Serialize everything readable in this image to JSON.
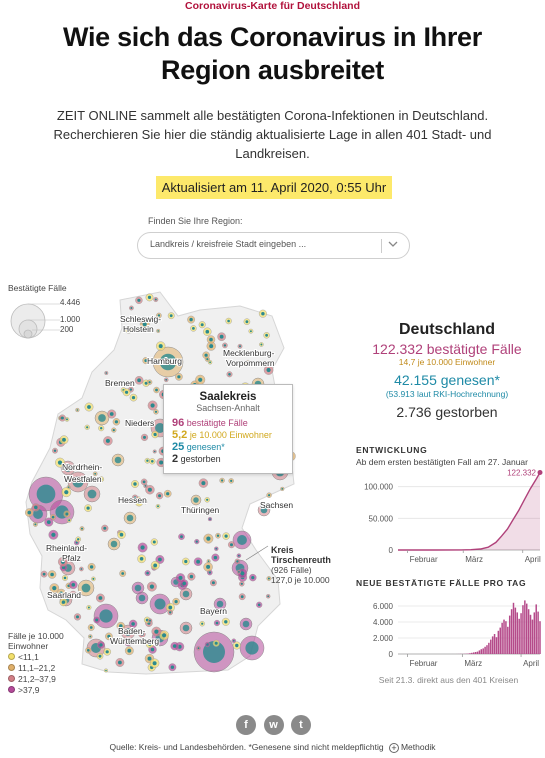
{
  "kicker": "Coronavirus-Karte für Deutschland",
  "headline_line1": "Wie sich das Coronavirus in Ihrer",
  "headline_line2": "Region ausbreitet",
  "intro_line1": "ZEIT ONLINE sammelt alle bestätigten Corona-Infektionen in Deutschland.",
  "intro_line2": "Recherchieren Sie hier die ständig aktualisierte Lage in allen 401 Stadt- und",
  "intro_line3": "Landkreisen.",
  "updated": "Aktualisiert am 11. April 2020, 0:55 Uhr",
  "search": {
    "label": "Finden Sie Ihre Region:",
    "placeholder": "Landkreis / kreisfreie Stadt eingeben ..."
  },
  "legend": {
    "size_title": "Bestätigte Fälle",
    "size_values": [
      "4.446",
      "1.000",
      "200"
    ],
    "color_title_1": "Fälle je 10.000",
    "color_title_2": "Einwohner",
    "color_bins": [
      {
        "label": "<11,1",
        "color": "#f3e06b"
      },
      {
        "label": "11,1–21,2",
        "color": "#e0b06a"
      },
      {
        "label": "21,2–37,9",
        "color": "#d27f86"
      },
      {
        "label": ">37,9",
        "color": "#b54a9a"
      }
    ]
  },
  "map": {
    "labels": [
      "Schleswig-",
      "Holstein",
      "Hamburg",
      "Mecklenburg-",
      "Vorpommern",
      "Bremen",
      "Nieders",
      "Nordrhein-",
      "Westfalen",
      "Hessen",
      "Thüringen",
      "Sachsen",
      "Rheinland-",
      "Pfalz",
      "Saarland",
      "Baden-",
      "Württemberg",
      "Bayern",
      "urg"
    ]
  },
  "tooltip": {
    "name": "Saalekreis",
    "state": "Sachsen-Anhalt",
    "confirmed": "96",
    "confirmed_label": "bestätigte Fälle",
    "per_capita": "5,2",
    "per_capita_label": "je 10.000 Einwohner",
    "recovered": "25",
    "recovered_label": "genesen*",
    "deaths": "2",
    "deaths_label": "gestorben"
  },
  "kreis_label": {
    "line1": "Kreis",
    "line2": "Tirschenreuth",
    "line3": "(926 Fälle)",
    "line4": "127,0 je 10.000"
  },
  "stats": {
    "country": "Deutschland",
    "confirmed": "122.332 bestätigte Fälle",
    "per_capita": "14,7  je 10.000 Einwohner",
    "recovered": "42.155 genesen*",
    "recovered_note": "(53.913  laut RKI-Hochrechnung)",
    "deaths": "2.736 gestorben"
  },
  "chart_data": [
    {
      "type": "area",
      "title": "ENTWICKLUNG",
      "subtitle": "Ab dem ersten bestätigten Fall am 27. Januar",
      "x_ticks": [
        "Februar",
        "März",
        "April"
      ],
      "y_ticks": [
        "100.000",
        "50.000",
        "0"
      ],
      "ylim": [
        0,
        120000
      ],
      "end_label": "122.332",
      "x": [
        "2020-01-27",
        "2020-02-15",
        "2020-02-29",
        "2020-03-05",
        "2020-03-10",
        "2020-03-14",
        "2020-03-18",
        "2020-03-21",
        "2020-03-24",
        "2020-03-27",
        "2020-03-30",
        "2020-04-02",
        "2020-04-05",
        "2020-04-08",
        "2020-04-10"
      ],
      "values": [
        1,
        16,
        80,
        500,
        1600,
        4500,
        12000,
        22000,
        33000,
        48000,
        63000,
        80000,
        97000,
        112000,
        122332
      ],
      "color": "#b0417a"
    },
    {
      "type": "bar",
      "title": "NEUE BESTÄTIGTE FÄLLE PRO TAG",
      "x_ticks": [
        "Februar",
        "März",
        "April"
      ],
      "y_ticks": [
        "6.000",
        "4.000",
        "2.000",
        "0"
      ],
      "ylim": [
        0,
        7000
      ],
      "note": "Seit 21.3. direkt aus den 401 Kreisen",
      "start_date": "2020-01-27",
      "values": [
        1,
        0,
        0,
        2,
        1,
        3,
        0,
        0,
        0,
        1,
        1,
        0,
        0,
        0,
        0,
        0,
        0,
        0,
        0,
        0,
        0,
        0,
        0,
        0,
        0,
        0,
        1,
        0,
        0,
        2,
        1,
        5,
        10,
        20,
        15,
        25,
        40,
        60,
        100,
        150,
        200,
        250,
        300,
        450,
        600,
        700,
        900,
        1100,
        1400,
        1800,
        2200,
        2500,
        2100,
        2900,
        3300,
        3900,
        4300,
        4100,
        3400,
        4800,
        5600,
        6400,
        5800,
        5200,
        4400,
        5100,
        6100,
        6700,
        6300,
        5600,
        4900,
        4300,
        5200,
        6200,
        5300,
        4100
      ],
      "color": "#b54a8a"
    }
  ],
  "footer": {
    "text": "Quelle: Kreis- und Landesbehörden. *Genesene sind nicht meldepflichtig",
    "methodik": "Methodik"
  },
  "social": {
    "facebook": "f",
    "whatsapp": "w",
    "twitter": "t"
  }
}
